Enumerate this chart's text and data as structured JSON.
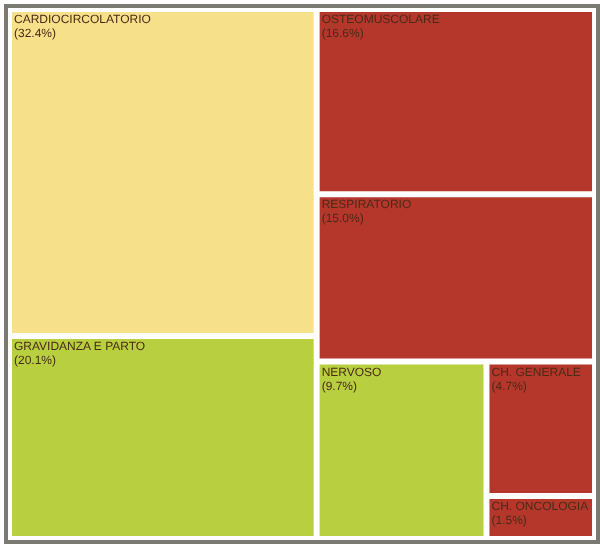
{
  "chart_data": {
    "type": "other",
    "categories": [
      "CARDIOCIRCOLATORIO",
      "GRAVIDANZA E PARTO",
      "OSTEOMUSCOLARE",
      "RESPIRATORIO",
      "NERVOSO",
      "CH. GENERALE",
      "CH. ONCOLOGIA"
    ],
    "values": [
      32.4,
      20.1,
      16.6,
      15.0,
      9.7,
      4.7,
      1.5
    ],
    "value_labels": [
      "(32.4%)",
      "(20.1%)",
      "(16.6%)",
      "(15.0%)",
      "(9.7%)",
      "(4.7%)",
      "(1.5%)"
    ],
    "colors": [
      "#f7e08a",
      "#b8cf40",
      "#b5372b",
      "#b5372b",
      "#b8cf40",
      "#b5372b",
      "#b5372b"
    ]
  }
}
